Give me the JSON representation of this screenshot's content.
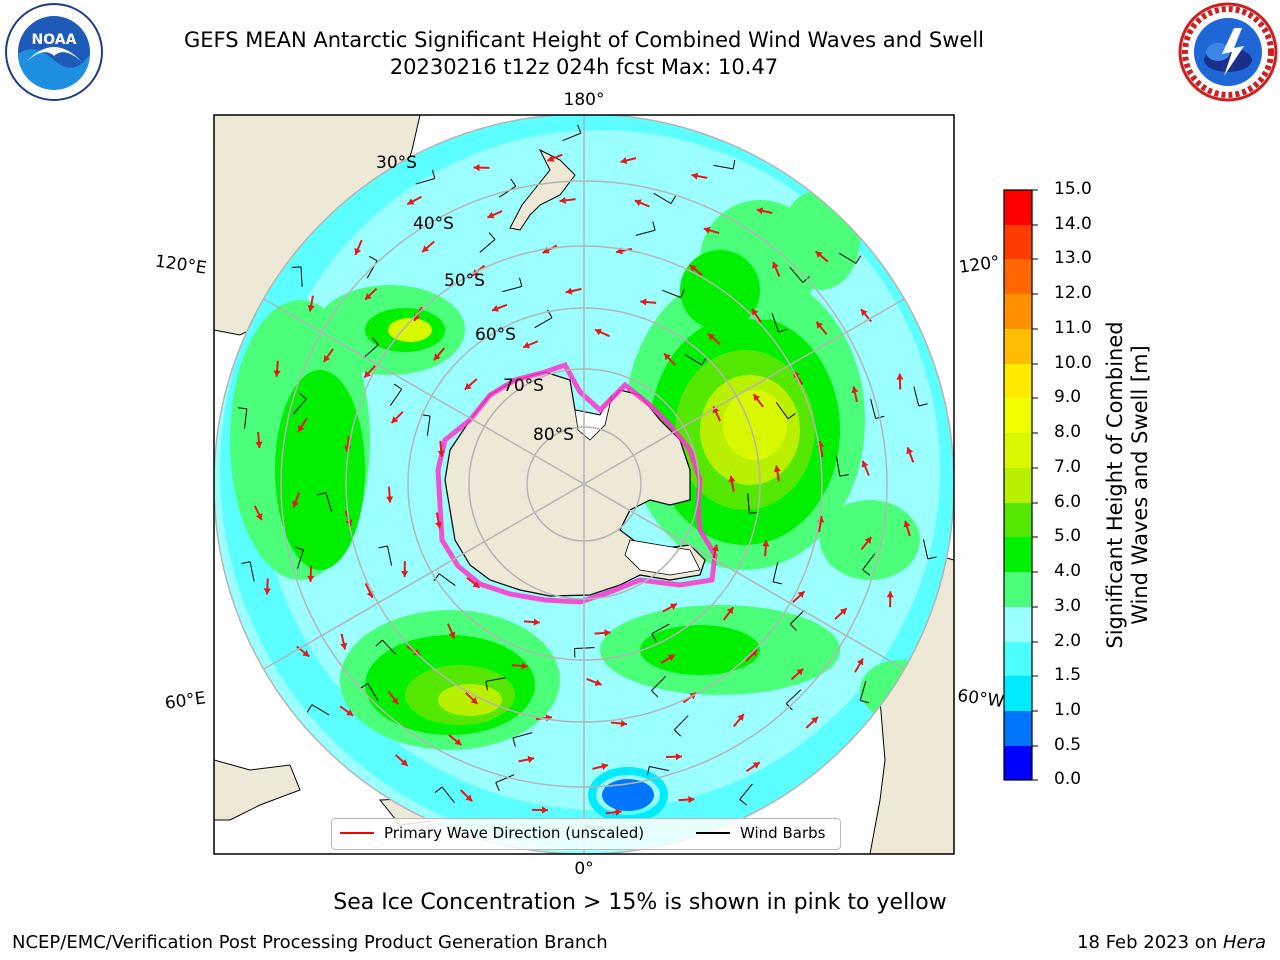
{
  "header": {
    "title_line1": "GEFS MEAN Antarctic Significant Height of Combined Wind Waves and Swell",
    "title_line2": "20230216 t12z 024h fcst   Max: 10.47"
  },
  "logos": {
    "left": "noaa-logo",
    "right": "national-weather-service-logo"
  },
  "map": {
    "projection": "south-polar-stereographic",
    "longitude_labels": [
      "180°",
      "120°E",
      "120°",
      "60°E",
      "60°W",
      "0°"
    ],
    "latitude_labels": [
      "30°S",
      "40°S",
      "50°S",
      "60°S",
      "70°S",
      "80°S"
    ],
    "max_value_text": "Max: 10.47",
    "colors": {
      "land": "#ede9d6",
      "graticule": "#b4b4b4",
      "wave_arrow": "#e31a1c",
      "wind_barb": "#000000",
      "sea_ice": "#ff33cc"
    }
  },
  "legend": {
    "wave_label": "Primary Wave Direction (unscaled)",
    "wave_color": "#ff0000",
    "barb_label": "Wind Barbs",
    "barb_color": "#000000"
  },
  "colorbar": {
    "title_line1": "Significant Height of Combined",
    "title_line2": "Wind Waves and Swell [m]",
    "ticks": [
      "15.0",
      "14.0",
      "13.0",
      "12.0",
      "11.0",
      "10.0",
      "9.0",
      "8.0",
      "7.0",
      "6.0",
      "5.0",
      "4.0",
      "3.0",
      "2.0",
      "1.5",
      "1.0",
      "0.5",
      "0.0"
    ],
    "bins": [
      {
        "from": 0.0,
        "to": 0.5,
        "color": "#0000ff"
      },
      {
        "from": 0.5,
        "to": 1.0,
        "color": "#0076ff"
      },
      {
        "from": 1.0,
        "to": 1.5,
        "color": "#00ebff"
      },
      {
        "from": 1.5,
        "to": 2.0,
        "color": "#4cffff"
      },
      {
        "from": 2.0,
        "to": 3.0,
        "color": "#9cffff"
      },
      {
        "from": 3.0,
        "to": 4.0,
        "color": "#4cff7a"
      },
      {
        "from": 4.0,
        "to": 5.0,
        "color": "#00f000"
      },
      {
        "from": 5.0,
        "to": 6.0,
        "color": "#54e800"
      },
      {
        "from": 6.0,
        "to": 7.0,
        "color": "#b8f000"
      },
      {
        "from": 7.0,
        "to": 8.0,
        "color": "#d8f800"
      },
      {
        "from": 8.0,
        "to": 9.0,
        "color": "#f0ff00"
      },
      {
        "from": 9.0,
        "to": 10.0,
        "color": "#ffea00"
      },
      {
        "from": 10.0,
        "to": 11.0,
        "color": "#ffbd00"
      },
      {
        "from": 11.0,
        "to": 12.0,
        "color": "#ff9000"
      },
      {
        "from": 12.0,
        "to": 13.0,
        "color": "#ff6800"
      },
      {
        "from": 13.0,
        "to": 14.0,
        "color": "#ff3c00"
      },
      {
        "from": 14.0,
        "to": 15.0,
        "color": "#ff0000"
      }
    ]
  },
  "caption": "Sea Ice Concentration > 15% is shown in pink to yellow",
  "footer": {
    "left": "NCEP/EMC/Verification Post Processing Product Generation Branch",
    "right_prefix": "18 Feb 2023 on ",
    "right_machine": "Hera"
  }
}
